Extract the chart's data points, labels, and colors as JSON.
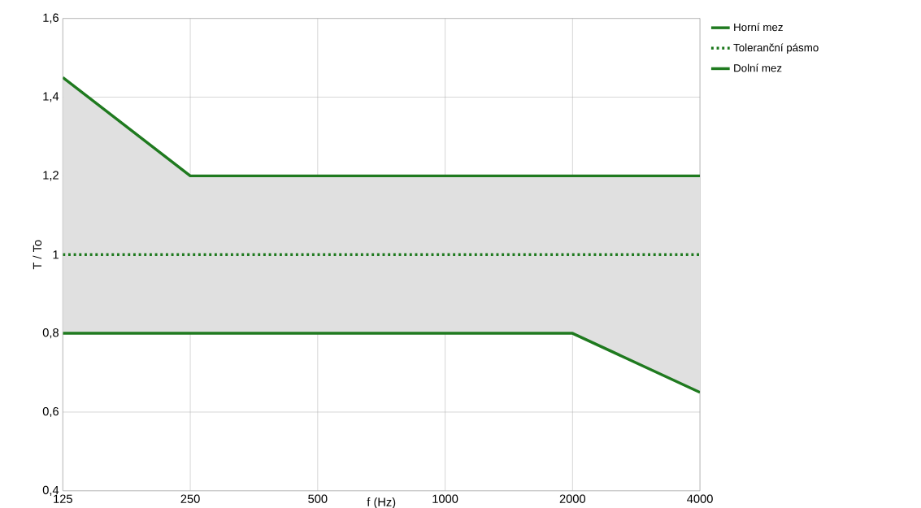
{
  "chart_data": {
    "type": "line",
    "xlabel": "f (Hz)",
    "ylabel": "T / To",
    "categories": [
      "125",
      "250",
      "500",
      "1000",
      "2000",
      "4000"
    ],
    "series": [
      {
        "name": "Horní mez",
        "color": "#1f7a1f",
        "line_style": "solid",
        "values": [
          1.45,
          1.2,
          1.2,
          1.2,
          1.2,
          1.2
        ]
      },
      {
        "name": "Toleranční pásmo",
        "color": "#1f7a1f",
        "line_style": "dotted",
        "values": [
          1,
          1,
          1,
          1,
          1,
          1
        ],
        "lower": [
          0.8,
          0.8,
          0.8,
          0.8,
          0.8,
          0.65
        ],
        "upper": [
          1.45,
          1.2,
          1.2,
          1.2,
          1.2,
          1.2
        ]
      },
      {
        "name": "Dolní mez",
        "color": "#1f7a1f",
        "line_style": "solid",
        "values": [
          0.8,
          0.8,
          0.8,
          0.8,
          0.8,
          0.65
        ]
      }
    ],
    "ylim": [
      0.4,
      1.6
    ],
    "yticks": [
      {
        "value": 0.4,
        "label": "0,4"
      },
      {
        "value": 0.6,
        "label": "0,6"
      },
      {
        "value": 0.8,
        "label": "0,8"
      },
      {
        "value": 1,
        "label": "1"
      },
      {
        "value": 1.2,
        "label": "1,2"
      },
      {
        "value": 1.4,
        "label": "1,4"
      },
      {
        "value": 1.6,
        "label": "1,6"
      }
    ],
    "grid": true,
    "legend": "right",
    "marker": "none"
  }
}
